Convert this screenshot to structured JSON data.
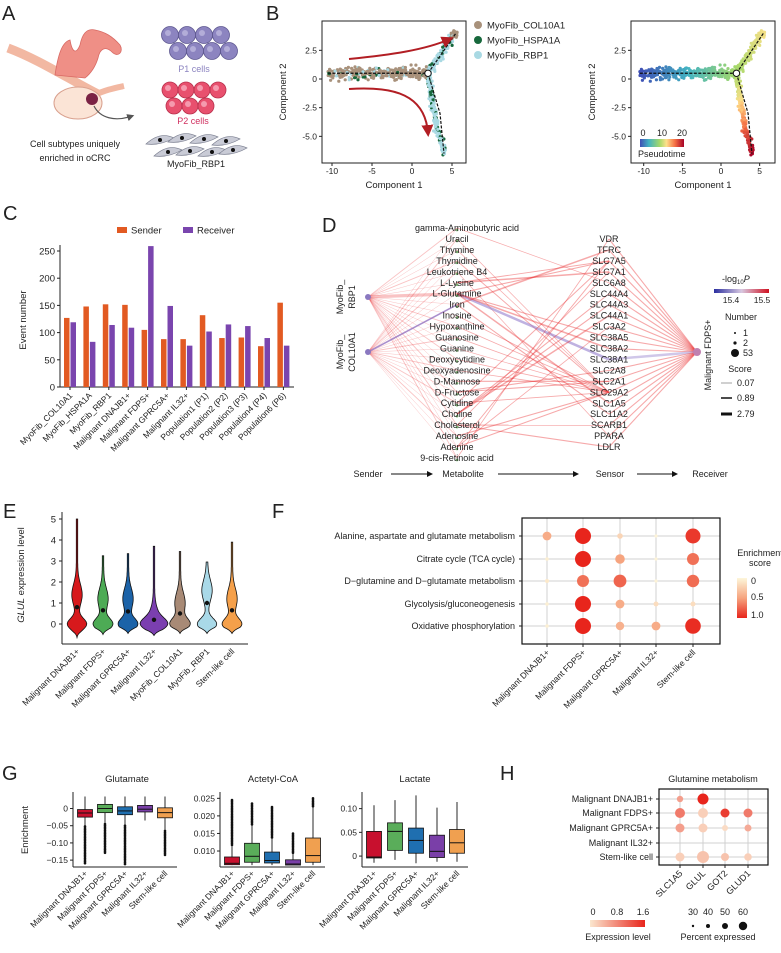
{
  "panel_letters": {
    "a": "A",
    "b": "B",
    "c": "C",
    "d": "D",
    "e": "E",
    "f": "F",
    "g": "G",
    "h": "H"
  },
  "panel_a": {
    "p1_label": "P1 cells",
    "p2_label": "P2 cells",
    "myofib_label": "MyoFib_RBP1",
    "caption_line1": "Cell subtypes uniquely",
    "caption_line2": "enriched in oCRC",
    "colors": {
      "p1": "#8c84c0",
      "p2": "#e8506e",
      "tissue": "#f0a49a"
    }
  },
  "chart_data": {
    "b_cluster": {
      "type": "scatter",
      "xlabel": "Component 1",
      "ylabel": "Component 2",
      "xlim": [
        -11,
        6.8
      ],
      "ylim": [
        -7.3,
        5
      ],
      "xticks": [
        "-10",
        "-5",
        "0",
        "5"
      ],
      "xtick_values": [
        -10,
        -5,
        0,
        5
      ],
      "yticks": [
        "2.5",
        "0",
        "-2.5",
        "-5.0"
      ],
      "ytick_values": [
        2.5,
        0,
        -2.5,
        -5
      ],
      "branch_point": [
        2,
        0.5
      ],
      "branches": {
        "root": [
          -10.5,
          0.5
        ],
        "upper_end": [
          5.5,
          4
        ],
        "lower_end": [
          4,
          -6.5
        ]
      },
      "legend": [
        {
          "name": "MyoFib_COL10A1",
          "color": "#a8917b"
        },
        {
          "name": "MyoFib_HSPA1A",
          "color": "#17683c"
        },
        {
          "name": "MyoFib_RBP1",
          "color": "#a9d9e3"
        }
      ]
    },
    "b_pseudotime": {
      "type": "scatter",
      "xlabel": "Component 1",
      "ylabel": "Component 2",
      "xticks": [
        "-10",
        "-5",
        "0",
        "5"
      ],
      "xtick_values": [
        -10,
        -5,
        0,
        5
      ],
      "yticks": [
        "2.5",
        "0",
        "-2.5",
        "-5.0"
      ],
      "ytick_values": [
        2.5,
        0,
        -2.5,
        -5
      ],
      "colorbar_title": "Pseudotime",
      "colorbar_ticks": [
        "0",
        "10",
        "20"
      ],
      "colorbar_range": [
        0,
        20
      ],
      "colors": [
        "#3f4fb5",
        "#43b3c2",
        "#a6d96a",
        "#fee08b",
        "#f46d43",
        "#a50026"
      ]
    },
    "c_events": {
      "type": "bar",
      "ylabel": "Event number",
      "ylim": [
        0,
        260
      ],
      "yticks": [
        "0",
        "50",
        "100",
        "150",
        "200",
        "250"
      ],
      "categories": [
        "MyoFib_COL10A1",
        "MyoFib_HSPA1A",
        "MyoFib_RBP1",
        "Malignant DNAJB1+",
        "Malignant FDPS+",
        "Malignant GPRC5A+",
        "Malignant IL32+",
        "Population1 (P1)",
        "Population2 (P2)",
        "Population3 (P3)",
        "Population4 (P4)",
        "Population6 (P6)"
      ],
      "series": [
        {
          "name": "Sender",
          "color": "#e25a22",
          "values": [
            127,
            148,
            152,
            151,
            105,
            88,
            88,
            132,
            90,
            91,
            75,
            155
          ]
        },
        {
          "name": "Receiver",
          "color": "#7a45ae",
          "values": [
            119,
            83,
            114,
            109,
            259,
            149,
            76,
            102,
            115,
            112,
            90,
            76
          ]
        }
      ],
      "legend": "top"
    },
    "e_violin": {
      "type": "violin",
      "ylabel_gene": "GLUL",
      "ylabel_rest": " expression level",
      "ylim": [
        -0.7,
        5
      ],
      "yticks": [
        "0",
        "1",
        "2",
        "3",
        "4",
        "5"
      ],
      "categories": [
        "Malignant DNAJB1+",
        "Malignant FDPS+",
        "Malignant GPRC5A+",
        "Malignant IL32+",
        "MyoFib_COL10A1",
        "MyoFib_RBP1",
        "Stem-like cell"
      ],
      "medians": [
        0.8,
        0.65,
        0.6,
        0.2,
        0.5,
        1.0,
        0.65
      ],
      "max": [
        5.0,
        3.25,
        3.35,
        3.7,
        3.45,
        2.95,
        3.9
      ],
      "min": [
        -0.65,
        -0.5,
        -0.45,
        -0.55,
        -0.45,
        -0.45,
        -0.45
      ],
      "second_mode": [
        1.4,
        1.2,
        1.2,
        0.2,
        1.0,
        1.6,
        1.2
      ],
      "colors": [
        "#d7191c",
        "#4dab55",
        "#1c63a8",
        "#7b3fb0",
        "#a88a76",
        "#a9d9e8",
        "#f5a04a"
      ]
    },
    "f_dotplot": {
      "type": "scatter",
      "rows": [
        "Alanine, aspartate and glutamate metabolism",
        "Citrate cycle (TCA cycle)",
        "D−glutamine and D−glutamate metabolism",
        "Glycolysis/gluconeogenesis",
        "Oxidative phosphorylation"
      ],
      "columns": [
        "Malignant DNAJB1+",
        "Malignant FDPS+",
        "Malignant GPRC5A+",
        "Malignant IL32+",
        "Stem-like cell"
      ],
      "values": [
        [
          0.45,
          1.0,
          0.2,
          0.02,
          0.92
        ],
        [
          0.05,
          1.0,
          0.5,
          0.02,
          0.7
        ],
        [
          0.08,
          0.7,
          0.75,
          0.02,
          0.72
        ],
        [
          0.04,
          1.0,
          0.45,
          0.15,
          0.15
        ],
        [
          0.04,
          1.0,
          0.42,
          0.45,
          0.97
        ]
      ],
      "legend_title_1": "Enrichment",
      "legend_title_2": "score",
      "legend_ticks": [
        "0",
        "0.5",
        "1.0"
      ],
      "colors": [
        "#fdf6da",
        "#f6a47f",
        "#e8251c"
      ]
    },
    "g_boxplots": [
      {
        "type": "box",
        "title": "Glutamate",
        "ylabel": "Enrichment",
        "ylim": [
          -0.17,
          0.048
        ],
        "yticks": [
          "0",
          "−0.05",
          "−0.10",
          "−0.15"
        ],
        "ytick_values": [
          0,
          -0.05,
          -0.1,
          -0.15
        ],
        "categories": [
          "Malignant DNAJB1+",
          "Malignant FDPS+",
          "Malignant GPRC5A+",
          "Malignant IL32+",
          "Stem-like cell"
        ],
        "boxes": [
          {
            "q1": -0.025,
            "median": -0.013,
            "q3": -0.003,
            "low": -0.052,
            "high": 0.035,
            "outlier_extreme": -0.16
          },
          {
            "q1": -0.012,
            "median": 0.0,
            "q3": 0.012,
            "low": -0.045,
            "high": 0.035,
            "outlier_extreme": -0.13
          },
          {
            "q1": -0.018,
            "median": -0.007,
            "q3": 0.005,
            "low": -0.05,
            "high": 0.035,
            "outlier_extreme": -0.165
          },
          {
            "q1": -0.01,
            "median": -0.002,
            "q3": 0.009,
            "low": -0.035,
            "high": 0.035,
            "outlier_extreme": null
          },
          {
            "q1": -0.027,
            "median": -0.012,
            "q3": 0.002,
            "low": -0.065,
            "high": 0.035,
            "outlier_extreme": -0.135
          }
        ]
      },
      {
        "type": "box",
        "title": "Actetyl-CoA",
        "ylim": [
          0.00545,
          0.0268
        ],
        "yticks": [
          "0.010",
          "0.015",
          "0.020",
          "0.025"
        ],
        "ytick_values": [
          0.01,
          0.015,
          0.02,
          0.025
        ],
        "categories": [
          "Malignant DNAJB1+",
          "Malignant FDPS+",
          "Malignant GPRC5A+",
          "Malignant IL32+",
          "Stem-like cell"
        ],
        "boxes": [
          {
            "q1": 0.0061,
            "median": 0.0065,
            "q3": 0.0083,
            "low": 0.006,
            "high": 0.0115,
            "outlier_extreme": 0.0245
          },
          {
            "q1": 0.0068,
            "median": 0.0085,
            "q3": 0.0122,
            "low": 0.006,
            "high": 0.0175,
            "outlier_extreme": 0.0235
          },
          {
            "q1": 0.0066,
            "median": 0.0073,
            "q3": 0.0097,
            "low": 0.006,
            "high": 0.0135,
            "outlier_extreme": 0.0225
          },
          {
            "q1": 0.006,
            "median": 0.0063,
            "q3": 0.0075,
            "low": 0.006,
            "high": 0.0095,
            "outlier_extreme": 0.015
          },
          {
            "q1": 0.0068,
            "median": 0.0087,
            "q3": 0.0137,
            "low": 0.006,
            "high": 0.0225,
            "outlier_extreme": 0.025
          }
        ]
      },
      {
        "type": "box",
        "title": "Lactate",
        "ylim": [
          -0.023,
          0.135
        ],
        "yticks": [
          "0",
          "0.05",
          "0.10"
        ],
        "ytick_values": [
          0,
          0.05,
          0.1
        ],
        "categories": [
          "Malignant DNAJB1+",
          "Malignant FDPS+",
          "Malignant GPRC5A+",
          "Malignant IL32+",
          "Stem-like cell"
        ],
        "boxes": [
          {
            "q1": -0.004,
            "median": -0.002,
            "q3": 0.052,
            "low": -0.014,
            "high": 0.107,
            "outlier_extreme": null
          },
          {
            "q1": 0.012,
            "median": 0.052,
            "q3": 0.07,
            "low": -0.008,
            "high": 0.118,
            "outlier_extreme": null
          },
          {
            "q1": 0.006,
            "median": 0.033,
            "q3": 0.059,
            "low": -0.015,
            "high": 0.128,
            "outlier_extreme": null
          },
          {
            "q1": -0.003,
            "median": 0.01,
            "q3": 0.044,
            "low": -0.012,
            "high": 0.102,
            "outlier_extreme": null
          },
          {
            "q1": 0.006,
            "median": 0.028,
            "q3": 0.056,
            "low": -0.012,
            "high": 0.114,
            "outlier_extreme": null
          }
        ]
      }
    ],
    "g_colors": [
      "#c8102e",
      "#5aad5a",
      "#1f6fb0",
      "#7a3fa8",
      "#f0a050"
    ],
    "h_dotplot": {
      "type": "scatter",
      "title": "Glutamine metabolism",
      "rows": [
        "Malignant DNAJB1+",
        "Malignant FDPS+",
        "Malignant GPRC5A+",
        "Malignant IL32+",
        "Stem-like cell"
      ],
      "columns": [
        "SLC1A5",
        "GLUL",
        "GOT2",
        "GLUD1"
      ],
      "expression": [
        [
          0.6,
          1.6,
          0,
          0
        ],
        [
          0.9,
          0.2,
          1.4,
          0.9
        ],
        [
          0.6,
          0.2,
          0.1,
          0.5
        ],
        [
          0,
          0,
          0,
          0
        ],
        [
          0.2,
          0.3,
          0.3,
          0.2
        ]
      ],
      "percent": [
        [
          32,
          55,
          0,
          0
        ],
        [
          50,
          50,
          45,
          45
        ],
        [
          45,
          45,
          30,
          35
        ],
        [
          0,
          0,
          0,
          0
        ],
        [
          45,
          60,
          40,
          38
        ]
      ],
      "color_legend_title": "Expression level",
      "color_legend_ticks": [
        "0",
        "0.8",
        "1.6"
      ],
      "size_legend_title": "Percent expressed",
      "size_legend_ticks": [
        "30",
        "40",
        "50",
        "60"
      ],
      "colors": [
        "#fbe7cf",
        "#e8251c"
      ]
    }
  },
  "panel_d": {
    "senders": [
      {
        "line1": "MyoFib_",
        "line2": "RBP1"
      },
      {
        "line1": "MyoFib_",
        "line2": "COL10A1"
      }
    ],
    "receiver": "Malignant FDPS+",
    "metabolites": [
      "gamma-Aminobutyric acid",
      "Uracil",
      "Thymine",
      "Thymidine",
      "Leukotriene B4",
      "L-Lysine",
      "L-Glutamine",
      "Iron",
      "Inosine",
      "Hypoxanthine",
      "Guanosine",
      "Guanine",
      "Deoxycytidine",
      "Deoxyadenosine",
      "D-Mannose",
      "D-Fructose",
      "Cytidine",
      "Choline",
      "Cholesterol",
      "Adenosine",
      "Adenine",
      "9-cis-Retinoic acid"
    ],
    "sensors": [
      "VDR",
      "TFRC",
      "SLC7A5",
      "SLC7A1",
      "SLC6A8",
      "SLC44A4",
      "SLC44A3",
      "SLC44A1",
      "SLC3A2",
      "SLC38A5",
      "SLC38A2",
      "SLC38A1",
      "SLC2A8",
      "SLC2A1",
      "SLC29A2",
      "SLC1A5",
      "SLC11A2",
      "SCARB1",
      "PPARA",
      "LDLR"
    ],
    "edges": [
      [
        "gamma-Aminobutyric acid",
        "SLC6A8",
        0.3
      ],
      [
        "Uracil",
        "SLC29A2",
        0.3
      ],
      [
        "Thymine",
        "SLC29A2",
        0.3
      ],
      [
        "Thymidine",
        "SLC29A2",
        0.5
      ],
      [
        "Leukotriene B4",
        "PPARA",
        0.3
      ],
      [
        "L-Lysine",
        "SLC7A1",
        0.9
      ],
      [
        "L-Lysine",
        "SLC7A5",
        0.5
      ],
      [
        "L-Glutamine",
        "SLC38A1",
        2.79
      ],
      [
        "L-Glutamine",
        "SLC1A5",
        0.9
      ],
      [
        "L-Glutamine",
        "SLC38A2",
        0.9
      ],
      [
        "L-Glutamine",
        "SLC38A5",
        0.6
      ],
      [
        "L-Glutamine",
        "SLC7A5",
        0.6
      ],
      [
        "Iron",
        "TFRC",
        0.9
      ],
      [
        "Iron",
        "SLC11A2",
        0.6
      ],
      [
        "Inosine",
        "SLC29A2",
        0.4
      ],
      [
        "Hypoxanthine",
        "SLC29A2",
        0.4
      ],
      [
        "Guanosine",
        "SLC29A2",
        0.4
      ],
      [
        "Guanine",
        "SLC29A2",
        0.3
      ],
      [
        "Deoxycytidine",
        "SLC29A2",
        0.4
      ],
      [
        "Deoxyadenosine",
        "SLC29A2",
        0.4
      ],
      [
        "D-Mannose",
        "SLC2A1",
        0.6
      ],
      [
        "D-Fructose",
        "SLC2A8",
        0.6
      ],
      [
        "D-Fructose",
        "SLC2A1",
        0.6
      ],
      [
        "Cytidine",
        "SLC29A2",
        0.4
      ],
      [
        "Choline",
        "SLC44A1",
        0.9
      ],
      [
        "Choline",
        "SLC44A3",
        0.6
      ],
      [
        "Choline",
        "SLC44A4",
        0.6
      ],
      [
        "Cholesterol",
        "LDLR",
        0.6
      ],
      [
        "Cholesterol",
        "SCARB1",
        0.6
      ],
      [
        "Adenosine",
        "SLC29A2",
        0.6
      ],
      [
        "Adenine",
        "SLC29A2",
        0.6
      ],
      [
        "Adenine",
        "SLC7A5",
        0.5
      ],
      [
        "9-cis-Retinoic acid",
        "VDR",
        0.4
      ],
      [
        "Cytidine",
        "SLC7A5",
        0.5
      ],
      [
        "Cholesterol",
        "SLC7A1",
        0.4
      ],
      [
        "Adenine",
        "SLC3A2",
        0.4
      ]
    ],
    "flow_labels": {
      "sender": "Sender",
      "metabolite": "Metabolite",
      "sensor": "Sensor",
      "receiver": "Receiver"
    },
    "legend": {
      "p_title_main": "-log",
      "p_title_sub": "10",
      "p_title_end": "P",
      "p_ticks": [
        "15.4",
        "15.5"
      ],
      "number_title": "Number",
      "number_ticks": [
        "1",
        "2",
        "53"
      ],
      "score_title": "Score",
      "score_ticks": [
        "0.07",
        "0.89",
        "2.79"
      ]
    },
    "colors": {
      "edge": "#e8282a",
      "highlight": "#8a72c8"
    }
  }
}
